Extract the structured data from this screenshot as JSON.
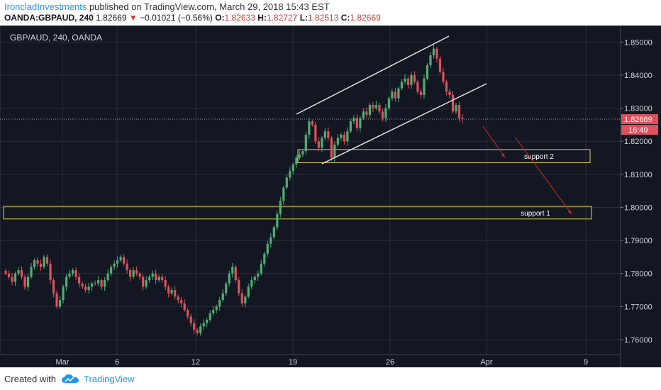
{
  "header": {
    "author": "IroncladInvestments",
    "published_text": " published on TradingView.com, March 29, 2018 15:43 EST",
    "symbol": "OANDA:GBPAUD, 240",
    "last": "1.82669",
    "change": "−0.01021 (−0.56%)",
    "o_label": "O:",
    "o_value": "1.82633",
    "h_label": "H:",
    "h_value": "1.82727",
    "l_label": "L:",
    "l_value": "1.82513",
    "c_label": "C:",
    "c_value": "1.82669"
  },
  "footer": {
    "created_with": "Created with",
    "brand": "TradingView"
  },
  "chart_data": {
    "type": "candlestick",
    "title": "GBP/AUD, 240, OANDA",
    "ylim": [
      1.7555,
      1.855
    ],
    "y_ticks": [
      "1.85000",
      "1.84000",
      "1.83000",
      "1.82000",
      "1.81000",
      "1.80000",
      "1.79000",
      "1.78000",
      "1.77000",
      "1.76000"
    ],
    "x_ticks": [
      "Mar",
      "6",
      "12",
      "19",
      "26",
      "Apr",
      "9"
    ],
    "last_price_label": "1.82669",
    "countdown_label": "16:49",
    "series": [
      {
        "name": "",
        "values": [
          1.78,
          1.779,
          1.7775,
          1.78,
          1.781,
          1.779,
          1.776,
          1.779,
          1.782,
          1.784,
          1.783,
          1.782,
          1.785,
          1.783,
          1.778,
          1.774,
          1.77,
          1.772,
          1.776,
          1.779,
          1.78,
          1.781,
          1.779,
          1.777,
          1.776,
          1.775,
          1.776,
          1.777,
          1.777,
          1.778,
          1.776,
          1.778,
          1.78,
          1.782,
          1.783,
          1.784,
          1.785,
          1.783,
          1.781,
          1.779,
          1.781,
          1.78,
          1.779,
          1.776,
          1.778,
          1.779,
          1.78,
          1.778,
          1.779,
          1.778,
          1.776,
          1.774,
          1.775,
          1.773,
          1.772,
          1.771,
          1.769,
          1.767,
          1.765,
          1.763,
          1.762,
          1.764,
          1.765,
          1.766,
          1.768,
          1.769,
          1.77,
          1.772,
          1.774,
          1.777,
          1.78,
          1.782,
          1.778,
          1.774,
          1.771,
          1.773,
          1.776,
          1.778,
          1.779,
          1.78,
          1.783,
          1.786,
          1.789,
          1.791,
          1.794,
          1.798,
          1.802,
          1.806,
          1.809,
          1.811,
          1.813,
          1.815,
          1.816,
          1.817,
          1.822,
          1.826,
          1.825,
          1.82,
          1.818,
          1.821,
          1.823,
          1.821,
          1.815,
          1.819,
          1.821,
          1.822,
          1.82,
          1.823,
          1.826,
          1.827,
          1.824,
          1.827,
          1.829,
          1.828,
          1.831,
          1.83,
          1.831,
          1.829,
          1.827,
          1.83,
          1.833,
          1.835,
          1.833,
          1.836,
          1.838,
          1.839,
          1.837,
          1.84,
          1.838,
          1.835,
          1.834,
          1.839,
          1.843,
          1.846,
          1.848,
          1.845,
          1.841,
          1.838,
          1.835,
          1.834,
          1.829,
          1.831,
          1.827,
          1.8267
        ]
      }
    ],
    "annotations": [
      {
        "text": "support 2",
        "price_low": 1.8135,
        "price_high": 1.8175
      },
      {
        "text": "support 1",
        "price_low": 1.7965,
        "price_high": 1.8003
      }
    ],
    "grid": true,
    "legend": "none"
  }
}
